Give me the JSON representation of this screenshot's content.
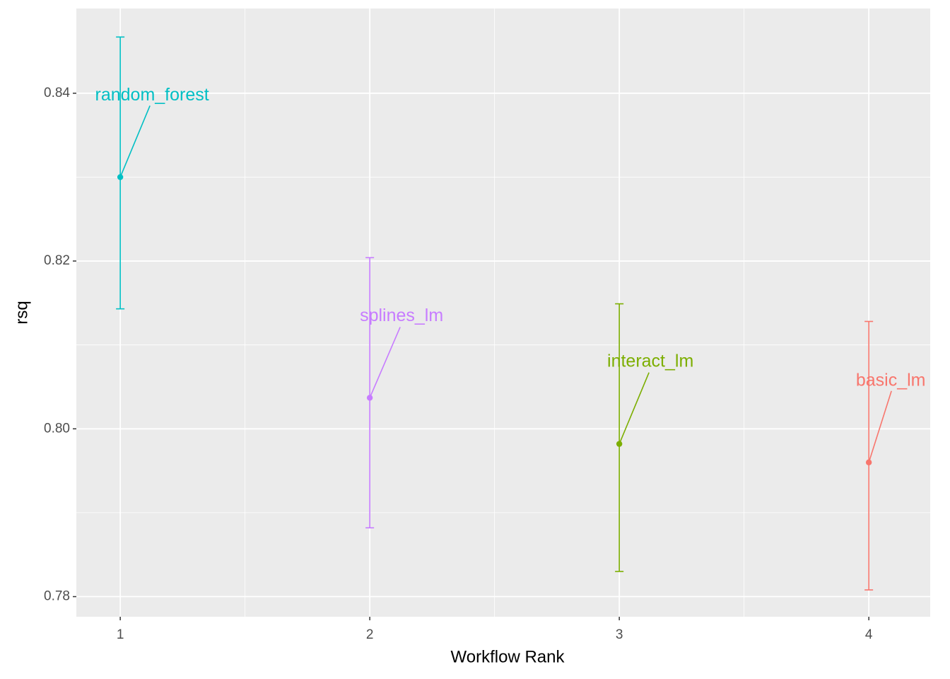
{
  "chart_data": {
    "type": "errorbar",
    "x_label": "Workflow Rank",
    "y_label": "rsq",
    "xlim": [
      0.824,
      4.246
    ],
    "ylim": [
      0.7776,
      0.8501
    ],
    "xticks": [
      1,
      2,
      3,
      4
    ],
    "yticks": [
      {
        "value": 0.78,
        "label": "0.78"
      },
      {
        "value": 0.8,
        "label": "0.80"
      },
      {
        "value": 0.82,
        "label": "0.82"
      },
      {
        "value": 0.84,
        "label": "0.84"
      }
    ],
    "xminor": [
      1.5,
      2.5,
      3.5
    ],
    "yminor": [
      0.79,
      0.81,
      0.83
    ],
    "grid": true,
    "series": [
      {
        "name": "random_forest",
        "color": "#00BFC4",
        "x": [
          1
        ],
        "values": [
          0.83
        ],
        "lower": [
          0.8143
        ],
        "upper": [
          0.8467
        ]
      },
      {
        "name": "splines_lm",
        "color": "#C77CFF",
        "x": [
          2
        ],
        "values": [
          0.8037
        ],
        "lower": [
          0.7882
        ],
        "upper": [
          0.8204
        ]
      },
      {
        "name": "interact_lm",
        "color": "#7CAE00",
        "x": [
          3
        ],
        "values": [
          0.7982
        ],
        "lower": [
          0.783
        ],
        "upper": [
          0.8149
        ]
      },
      {
        "name": "basic_lm",
        "color": "#F8766D",
        "x": [
          4
        ],
        "values": [
          0.796
        ],
        "lower": [
          0.7808
        ],
        "upper": [
          0.8128
        ]
      }
    ]
  }
}
